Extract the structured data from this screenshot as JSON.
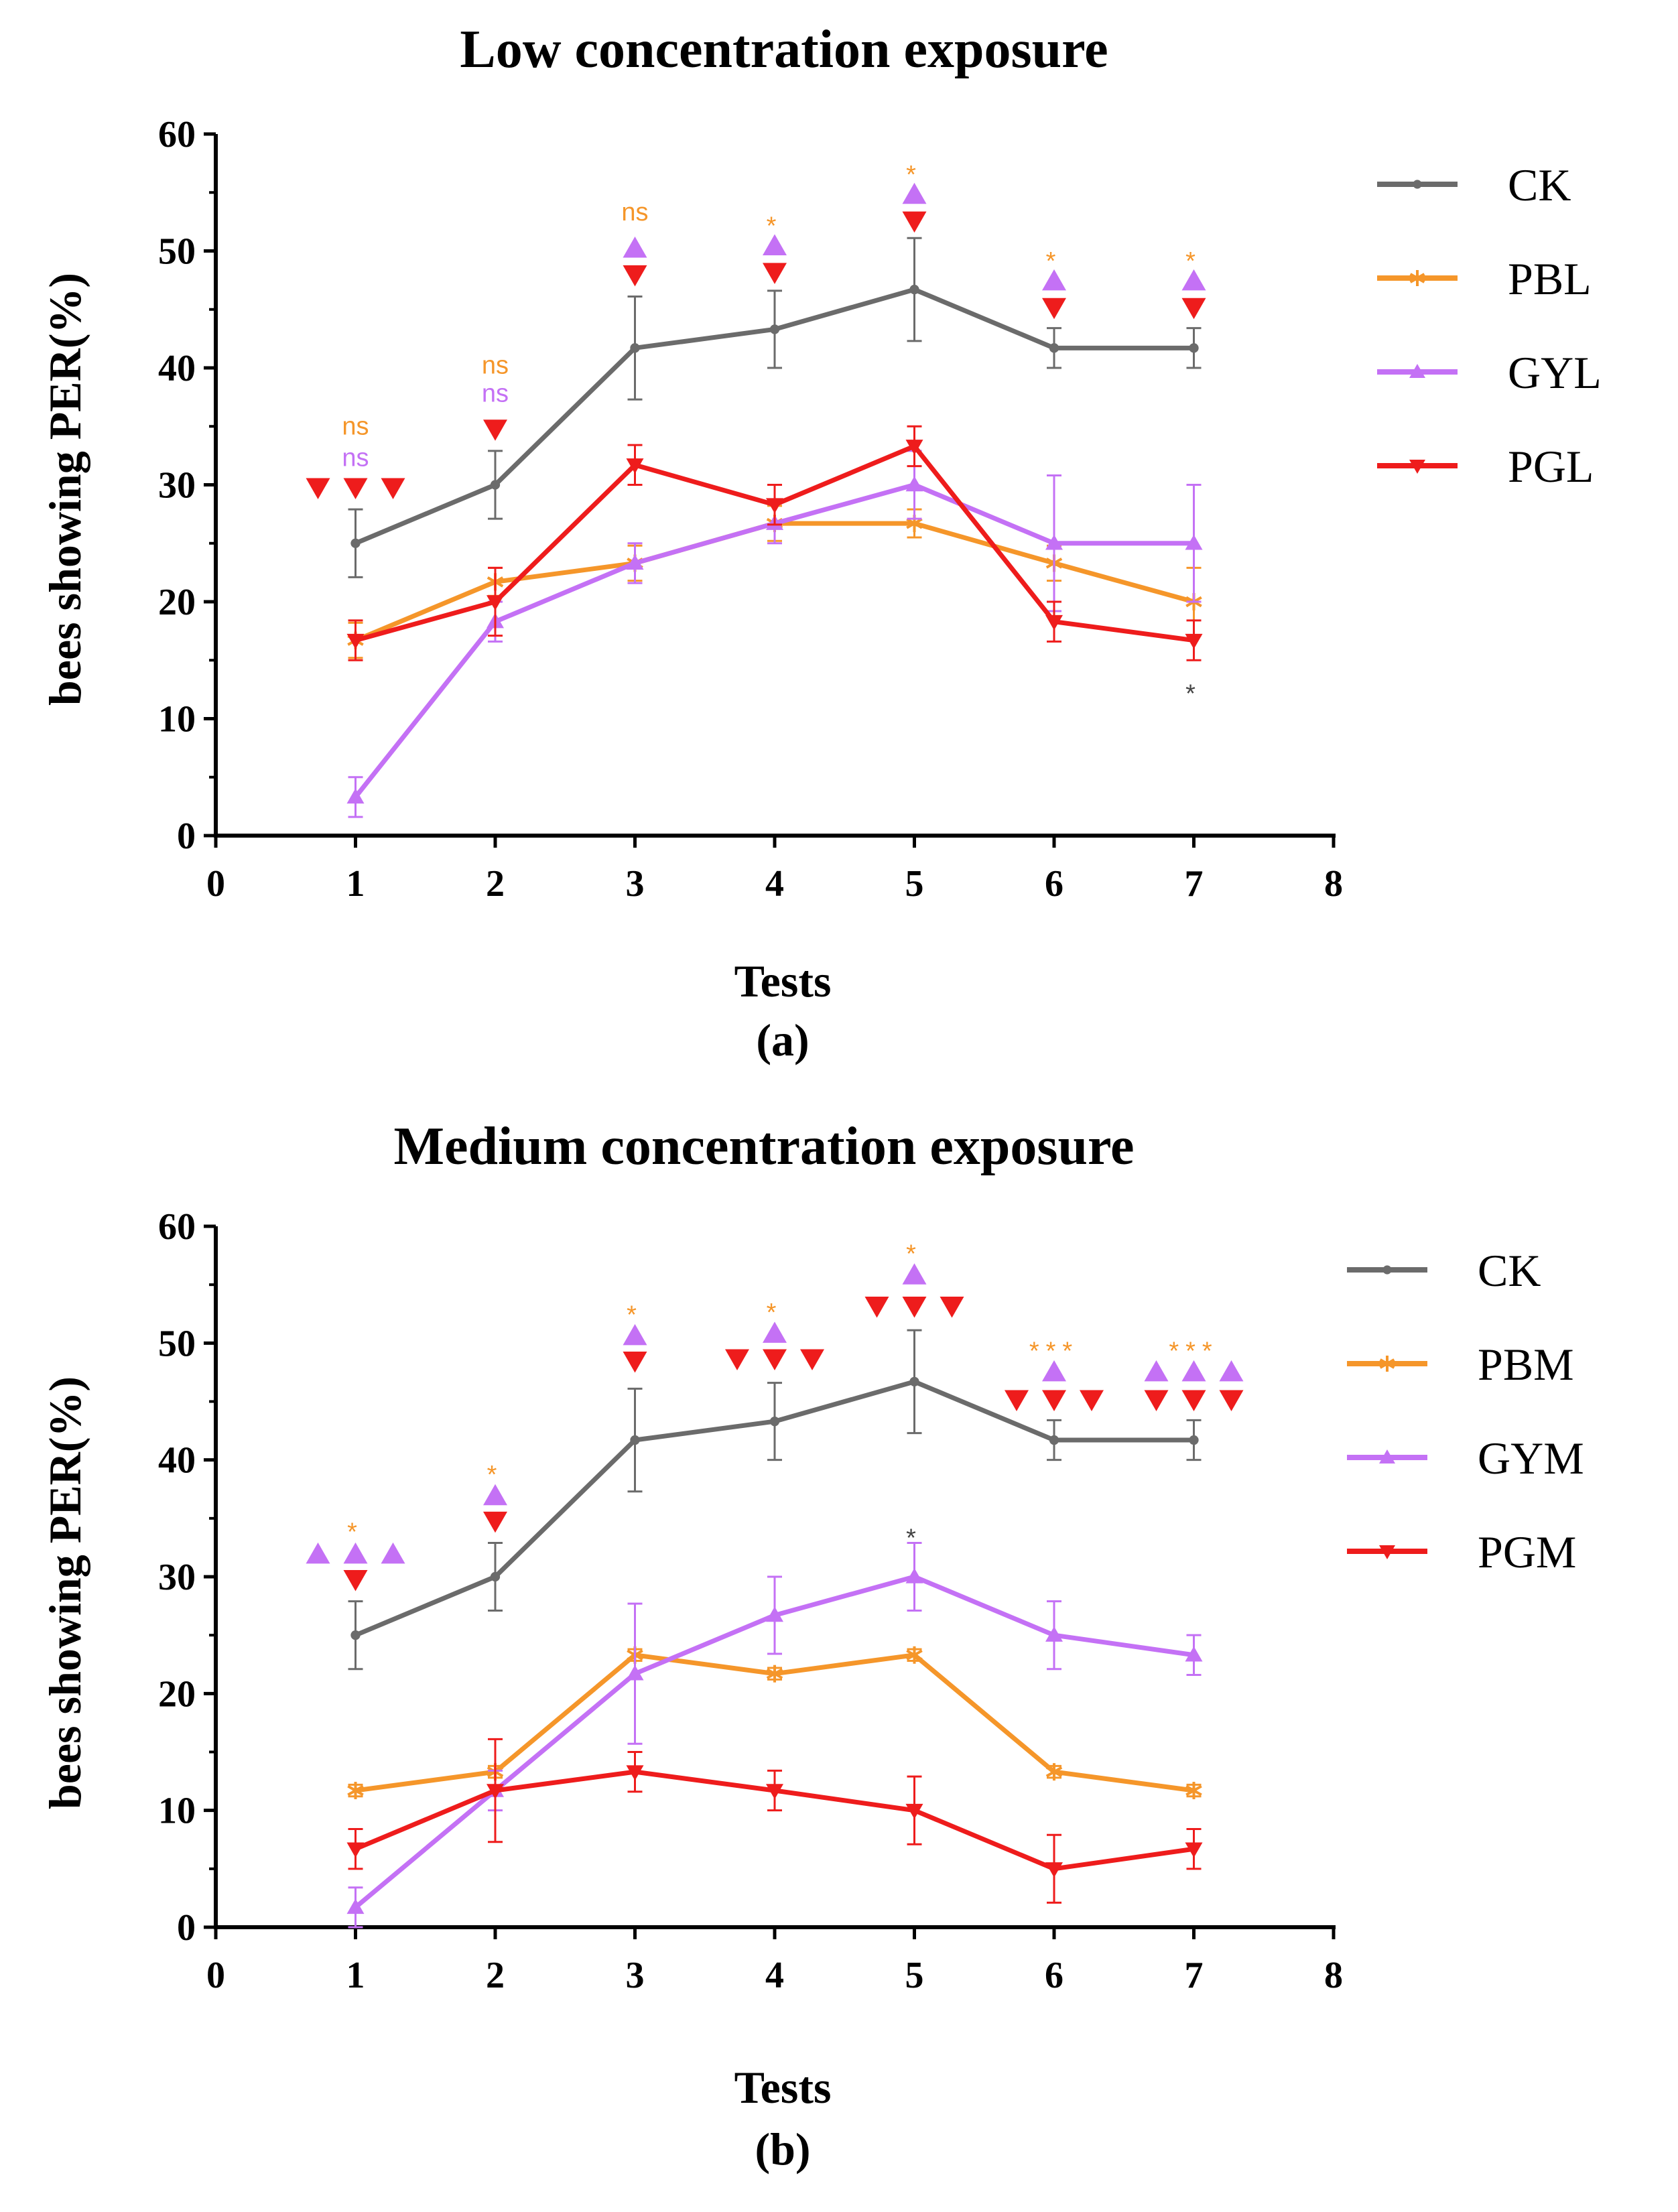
{
  "chart_data": [
    {
      "type": "line",
      "title": "Low concentration exposure",
      "xlabel": "Tests",
      "ylabel": "bees showing PER(%)",
      "panel_label": "(a)",
      "xlim": [
        0,
        8
      ],
      "ylim": [
        0,
        60
      ],
      "xticks": [
        "0",
        "1",
        "2",
        "3",
        "4",
        "5",
        "6",
        "7",
        "8"
      ],
      "yticks": [
        "0",
        "10",
        "20",
        "30",
        "40",
        "50",
        "60"
      ],
      "x": [
        1,
        2,
        3,
        4,
        5,
        6,
        7
      ],
      "legend_position": "right",
      "series": [
        {
          "name": "CK",
          "color": "#6b6b6b",
          "marker": "circle",
          "values": [
            25,
            30,
            41.7,
            43.3,
            46.7,
            41.7,
            41.7
          ],
          "errors": [
            2.9,
            2.9,
            4.4,
            3.3,
            4.4,
            1.7,
            1.7
          ]
        },
        {
          "name": "PBL",
          "color": "#f5962a",
          "marker": "star",
          "values": [
            16.7,
            21.7,
            23.3,
            26.7,
            26.7,
            23.3,
            20
          ],
          "errors": [
            1.5,
            1.2,
            1.5,
            1.5,
            1.2,
            1.5,
            2.9
          ]
        },
        {
          "name": "GYL",
          "color": "#c471f5",
          "marker": "triangle-up",
          "values": [
            3.3,
            18.3,
            23.3,
            26.7,
            30,
            25,
            25
          ],
          "errors": [
            1.7,
            1.7,
            1.7,
            1.7,
            2.9,
            5.8,
            5.0
          ]
        },
        {
          "name": "PGL",
          "color": "#ee1c1c",
          "marker": "triangle-down",
          "values": [
            16.7,
            20,
            31.7,
            28.3,
            33.3,
            18.3,
            16.7
          ],
          "errors": [
            1.7,
            2.9,
            1.7,
            1.7,
            1.7,
            1.7,
            1.7
          ]
        }
      ],
      "annotations": [
        {
          "x": 1,
          "y": 29.8,
          "symbol": "triangle-down",
          "color": "#ee1c1c",
          "count": 3
        },
        {
          "x": 1,
          "y": 35,
          "text": "ns",
          "color": "#f5962a"
        },
        {
          "x": 1,
          "y": 32.3,
          "text": "ns",
          "color": "#c471f5"
        },
        {
          "x": 2,
          "y": 34.8,
          "symbol": "triangle-down",
          "color": "#ee1c1c",
          "count": 1
        },
        {
          "x": 2,
          "y": 37.8,
          "text": "ns",
          "color": "#c471f5"
        },
        {
          "x": 2,
          "y": 40.2,
          "text": "ns",
          "color": "#f5962a"
        },
        {
          "x": 3,
          "y": 48,
          "symbol": "triangle-down",
          "color": "#ee1c1c",
          "count": 1
        },
        {
          "x": 3,
          "y": 50.2,
          "symbol": "triangle-up",
          "color": "#c471f5",
          "count": 1
        },
        {
          "x": 3,
          "y": 53.3,
          "text": "ns",
          "color": "#f5962a"
        },
        {
          "x": 4,
          "y": 48.2,
          "symbol": "triangle-down",
          "color": "#ee1c1c",
          "count": 1
        },
        {
          "x": 4,
          "y": 50.4,
          "symbol": "triangle-up",
          "color": "#c471f5",
          "count": 1
        },
        {
          "x": 4,
          "y": 52.8,
          "text": "*",
          "color": "#f5962a"
        },
        {
          "x": 5,
          "y": 52.6,
          "symbol": "triangle-down",
          "color": "#ee1c1c",
          "count": 1
        },
        {
          "x": 5,
          "y": 54.8,
          "symbol": "triangle-up",
          "color": "#c471f5",
          "count": 1
        },
        {
          "x": 5,
          "y": 57.2,
          "text": "*",
          "color": "#f5962a"
        },
        {
          "x": 6,
          "y": 45.2,
          "symbol": "triangle-down",
          "color": "#ee1c1c",
          "count": 1
        },
        {
          "x": 6,
          "y": 47.4,
          "symbol": "triangle-up",
          "color": "#c471f5",
          "count": 1
        },
        {
          "x": 6,
          "y": 49.8,
          "text": "*",
          "color": "#f5962a"
        },
        {
          "x": 7,
          "y": 45.2,
          "symbol": "triangle-down",
          "color": "#ee1c1c",
          "count": 1
        },
        {
          "x": 7,
          "y": 47.4,
          "symbol": "triangle-up",
          "color": "#c471f5",
          "count": 1
        },
        {
          "x": 7,
          "y": 49.8,
          "text": "*",
          "color": "#f5962a"
        },
        {
          "x": 7,
          "y": 12.8,
          "text": "*",
          "color": "#444444"
        }
      ]
    },
    {
      "type": "line",
      "title": "Medium concentration exposure",
      "xlabel": "Tests",
      "ylabel": "bees showing PER(%)",
      "panel_label": "(b)",
      "xlim": [
        0,
        8
      ],
      "ylim": [
        0,
        60
      ],
      "xticks": [
        "0",
        "1",
        "2",
        "3",
        "4",
        "5",
        "6",
        "7",
        "8"
      ],
      "yticks": [
        "0",
        "10",
        "20",
        "30",
        "40",
        "50",
        "60"
      ],
      "x": [
        1,
        2,
        3,
        4,
        5,
        6,
        7
      ],
      "legend_position": "right",
      "series": [
        {
          "name": "CK",
          "color": "#6b6b6b",
          "marker": "circle",
          "values": [
            25,
            30,
            41.7,
            43.3,
            46.7,
            41.7,
            41.7
          ],
          "errors": [
            2.9,
            2.9,
            4.4,
            3.3,
            4.4,
            1.7,
            1.7
          ]
        },
        {
          "name": "PBM",
          "color": "#f5962a",
          "marker": "star",
          "values": [
            11.7,
            13.3,
            23.3,
            21.7,
            23.3,
            13.3,
            11.7
          ],
          "errors": [
            0.5,
            0.5,
            0.5,
            0.5,
            0.5,
            0.5,
            0.5
          ]
        },
        {
          "name": "GYM",
          "color": "#c471f5",
          "marker": "triangle-up",
          "values": [
            1.7,
            11.7,
            21.7,
            26.7,
            30,
            25,
            23.3
          ],
          "errors": [
            1.7,
            1.7,
            6.0,
            3.3,
            2.9,
            2.9,
            1.7
          ]
        },
        {
          "name": "PGM",
          "color": "#ee1c1c",
          "marker": "triangle-down",
          "values": [
            6.7,
            11.7,
            13.3,
            11.7,
            10,
            5,
            6.7
          ],
          "errors": [
            1.7,
            4.4,
            1.7,
            1.7,
            2.9,
            2.9,
            1.7
          ]
        }
      ],
      "annotations": [
        {
          "x": 1,
          "y": 29.8,
          "symbol": "triangle-down",
          "color": "#ee1c1c",
          "count": 1
        },
        {
          "x": 1,
          "y": 31.9,
          "symbol": "triangle-up",
          "color": "#c471f5",
          "count": 3
        },
        {
          "x": 1,
          "y": 34.5,
          "text": "*",
          "color": "#f5962a"
        },
        {
          "x": 2,
          "y": 34.8,
          "symbol": "triangle-down",
          "color": "#ee1c1c",
          "count": 1
        },
        {
          "x": 2,
          "y": 36.9,
          "symbol": "triangle-up",
          "color": "#c471f5",
          "count": 1
        },
        {
          "x": 2,
          "y": 39.4,
          "text": "*",
          "color": "#f5962a"
        },
        {
          "x": 3,
          "y": 48.5,
          "symbol": "triangle-down",
          "color": "#ee1c1c",
          "count": 1
        },
        {
          "x": 3,
          "y": 50.6,
          "symbol": "triangle-up",
          "color": "#c471f5",
          "count": 1
        },
        {
          "x": 3,
          "y": 53.1,
          "text": "*",
          "color": "#f5962a"
        },
        {
          "x": 4,
          "y": 48.7,
          "symbol": "triangle-down",
          "color": "#ee1c1c",
          "count": 3
        },
        {
          "x": 4,
          "y": 50.8,
          "symbol": "triangle-up",
          "color": "#c471f5",
          "count": 1
        },
        {
          "x": 4,
          "y": 53.3,
          "text": "*",
          "color": "#f5962a"
        },
        {
          "x": 5,
          "y": 53.2,
          "symbol": "triangle-down",
          "color": "#ee1c1c",
          "count": 3
        },
        {
          "x": 5,
          "y": 55.8,
          "symbol": "triangle-up",
          "color": "#c471f5",
          "count": 1
        },
        {
          "x": 5,
          "y": 58.3,
          "text": "*",
          "color": "#f5962a"
        },
        {
          "x": 6,
          "y": 45.2,
          "symbol": "triangle-down",
          "color": "#ee1c1c",
          "count": 3
        },
        {
          "x": 6,
          "y": 47.5,
          "symbol": "triangle-up",
          "color": "#c471f5",
          "count": 1
        },
        {
          "x": 6,
          "y": 50.0,
          "text": "***",
          "color": "#f5962a"
        },
        {
          "x": 7,
          "y": 45.2,
          "symbol": "triangle-down",
          "color": "#ee1c1c",
          "count": 3
        },
        {
          "x": 7,
          "y": 47.5,
          "symbol": "triangle-up",
          "color": "#c471f5",
          "count": 3
        },
        {
          "x": 7,
          "y": 50.0,
          "text": "***",
          "color": "#f5962a"
        },
        {
          "x": 5,
          "y": 34.0,
          "text": "*",
          "color": "#444444"
        }
      ]
    }
  ]
}
